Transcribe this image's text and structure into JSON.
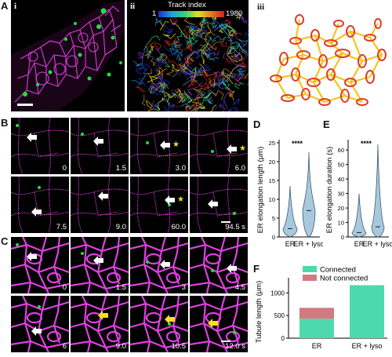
{
  "panel_labels": {
    "A": "A",
    "B": "B",
    "C": "C",
    "D": "D",
    "E": "E",
    "F": "F"
  },
  "panel_a": {
    "sub_i": "i",
    "sub_ii": "ii",
    "sub_iii": "iii",
    "colorbar_title": "Track index",
    "colorbar_min": "1",
    "colorbar_max": "1980"
  },
  "panel_b": {
    "frames": [
      "0",
      "1.5",
      "3.0",
      "6.0",
      "7.5",
      "9.0",
      "60.0",
      "94.5 s"
    ]
  },
  "panel_c": {
    "frames": [
      "0",
      "1.5",
      "3",
      "4.5",
      "6",
      "9.0",
      "10.5",
      "12.0 s"
    ]
  },
  "chart_data": [
    {
      "panel": "D",
      "type": "violin",
      "ylabel": "ER elongation length (μm)",
      "categories": [
        "ER",
        "ER + lyso"
      ],
      "ylim": [
        0,
        25
      ],
      "yticks": [
        0,
        5,
        10,
        15,
        20,
        25
      ],
      "median": [
        2.2,
        7.0
      ],
      "max": [
        13.5,
        22.5
      ],
      "annotation": "****",
      "fill_color": "#a8c8dc"
    },
    {
      "panel": "E",
      "type": "violin",
      "ylabel": "ER elongation duration (s)",
      "categories": [
        "ER",
        "ER + lyso"
      ],
      "ylim": [
        0,
        65
      ],
      "yticks": [
        0,
        10,
        20,
        30,
        40,
        50,
        60
      ],
      "median": [
        3,
        7
      ],
      "max": [
        30,
        64
      ],
      "annotation": "****",
      "fill_color": "#a8c8dc"
    },
    {
      "panel": "F",
      "type": "bar",
      "stacked": true,
      "ylabel": "Tubule length (μm)",
      "categories": [
        "ER",
        "ER + lyso"
      ],
      "ylim": [
        0,
        1300
      ],
      "yticks": [
        0,
        500,
        1000
      ],
      "series": [
        {
          "name": "Connected",
          "values": [
            430,
            1170
          ],
          "color": "#4dd9ac"
        },
        {
          "name": "Not connected",
          "values": [
            240,
            0
          ],
          "color": "#d27a80"
        }
      ],
      "legend": "top"
    }
  ]
}
